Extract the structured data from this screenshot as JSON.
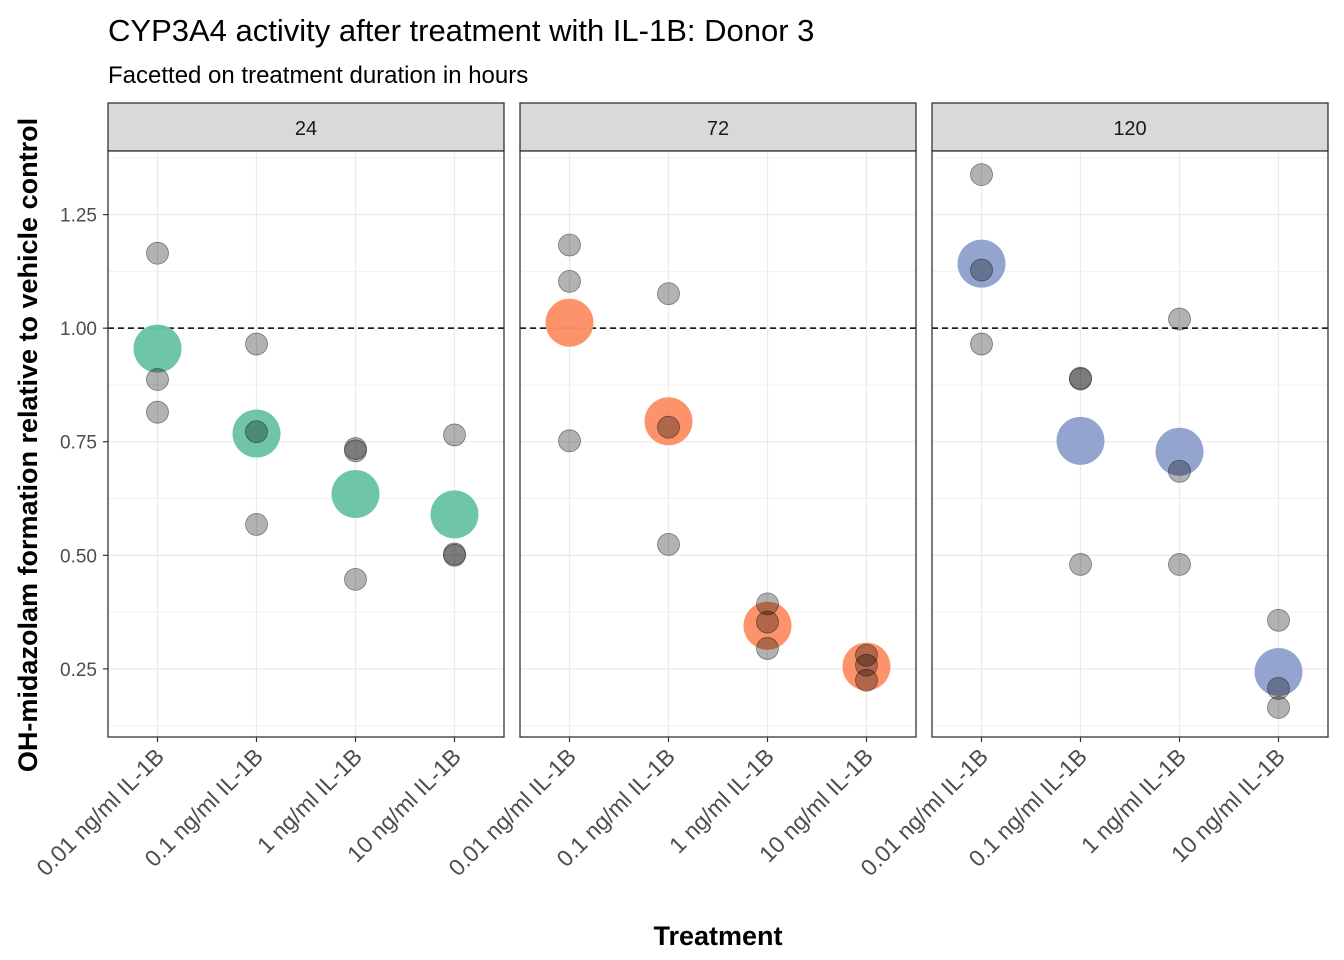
{
  "chart_data": {
    "type": "scatter",
    "title": "CYP3A4 activity after treatment with IL-1B: Donor 3",
    "subtitle": "Facetted on treatment duration in hours",
    "xlabel": "Treatment",
    "ylabel": "OH-midazolam formation relative to vehicle control",
    "categories": [
      "0.01 ng/ml IL-1B",
      "0.1 ng/ml IL-1B",
      "1 ng/ml IL-1B",
      "10 ng/ml IL-1B"
    ],
    "ylim": [
      0.1,
      1.39
    ],
    "y_ticks": [
      0.25,
      0.5,
      0.75,
      1.0
    ],
    "y_tick_labels": [
      "0.25",
      "0.50",
      "0.75",
      "1.00",
      "1.25"
    ],
    "y_ticks_all": [
      0.25,
      0.5,
      0.75,
      1.0,
      1.25
    ],
    "reference_line": 1.0,
    "grid": true,
    "replicate_color": "#000000",
    "facets": [
      {
        "label": "24",
        "mean_color": "#66c2a5",
        "means": [
          0.955,
          0.768,
          0.635,
          0.59
        ],
        "replicates": [
          [
            1.165,
            0.887,
            0.815
          ],
          [
            0.965,
            0.772,
            0.568
          ],
          [
            0.735,
            0.73,
            0.447
          ],
          [
            0.765,
            0.503,
            0.5
          ]
        ]
      },
      {
        "label": "72",
        "mean_color": "#fc8d62",
        "means": [
          1.012,
          0.795,
          0.345,
          0.255
        ],
        "replicates": [
          [
            1.183,
            1.103,
            0.752
          ],
          [
            1.076,
            0.782,
            0.524
          ],
          [
            0.393,
            0.353,
            0.295
          ],
          [
            0.28,
            0.258,
            0.225
          ]
        ]
      },
      {
        "label": "120",
        "mean_color": "#8da0cb",
        "means": [
          1.142,
          0.752,
          0.728,
          0.243
        ],
        "replicates": [
          [
            1.338,
            1.128,
            0.965
          ],
          [
            0.89,
            0.888,
            0.48
          ],
          [
            1.02,
            0.685,
            0.48
          ],
          [
            0.357,
            0.207,
            0.165
          ]
        ]
      }
    ]
  }
}
